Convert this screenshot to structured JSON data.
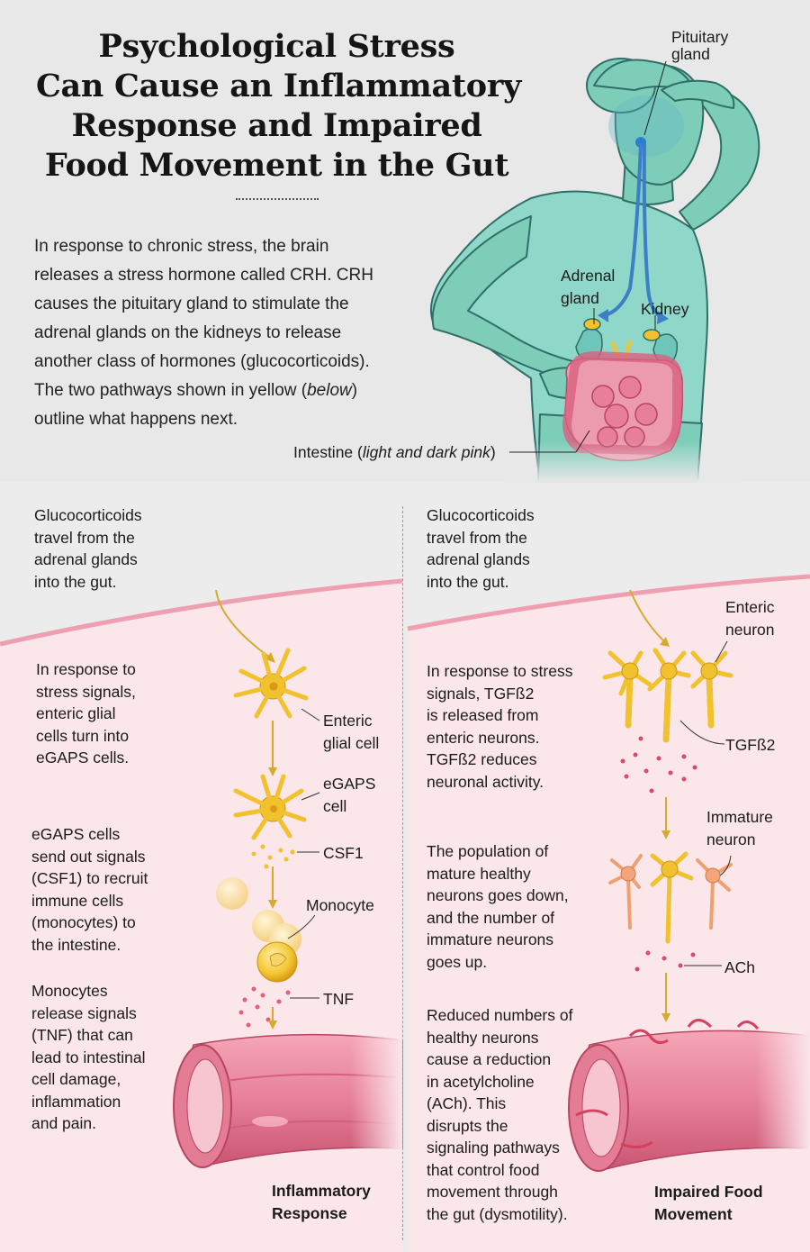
{
  "title": {
    "lines": [
      "Psychological Stress",
      "Can Cause an Inflammatory",
      "Response and Impaired",
      "Food Movement in the Gut"
    ]
  },
  "intro": {
    "lines": [
      "In response to chronic stress, the brain",
      "releases a stress hormone called CRH. CRH",
      "causes the pituitary gland to stimulate the",
      "adrenal glands on the kidneys to release",
      "another class of hormones (glucocorticoids).",
      "The two pathways shown in yellow (",
      "below",
      ")",
      "outline what happens next."
    ]
  },
  "body_labels": {
    "pituitary": [
      "Pituitary",
      "gland"
    ],
    "adrenal": [
      "Adrenal",
      "gland"
    ],
    "kidney": "Kidney",
    "intestine_prefix": "Intestine (",
    "intestine_italic": "light and dark pink",
    "intestine_suffix": ")"
  },
  "left_panel": {
    "intro": [
      "Glucocorticoids",
      "travel from the",
      "adrenal glands",
      "into the gut."
    ],
    "step1": [
      "In response to",
      "stress signals,",
      "enteric glial",
      "cells turn into",
      "eGAPS cells."
    ],
    "step2": [
      "eGAPS cells",
      "send out signals",
      "(CSF1) to recruit",
      "immune cells",
      "(monocytes) to",
      "the intestine."
    ],
    "step3": [
      "Monocytes",
      "release signals",
      "(TNF) that can",
      "lead to intestinal",
      "cell damage,",
      "inflammation",
      "and pain."
    ],
    "labels": {
      "enteric_glial": [
        "Enteric",
        "glial cell"
      ],
      "egaps": [
        "eGAPS",
        "cell"
      ],
      "csf1": "CSF1",
      "monocyte": "Monocyte",
      "tnf": "TNF"
    },
    "caption": [
      "Inflammatory",
      "Response"
    ]
  },
  "right_panel": {
    "intro": [
      "Glucocorticoids",
      "travel from the",
      "adrenal glands",
      "into the gut."
    ],
    "step1": [
      "In response to stress",
      "signals, TGFß2",
      "is released from",
      "enteric neurons.",
      "TGFß2 reduces",
      "neuronal activity."
    ],
    "step2": [
      "The population of",
      "mature healthy",
      "neurons goes down,",
      "and the number of",
      "immature neurons",
      "goes up."
    ],
    "step3": [
      "Reduced numbers of",
      "healthy neurons",
      "cause a reduction",
      "in acetylcholine",
      "(ACh). This",
      "disrupts the",
      "signaling pathways",
      "that control food",
      "movement through",
      "the gut (dysmotility)."
    ],
    "labels": {
      "enteric_neuron": [
        "Enteric",
        "neuron"
      ],
      "tgfb2": "TGFß2",
      "immature_neuron": [
        "Immature",
        "neuron"
      ],
      "ach": "ACh"
    },
    "caption": [
      "Impaired Food",
      "Movement"
    ]
  },
  "colors": {
    "skin": "#7ecdb9",
    "skin_dark": "#2f6f66",
    "shirt": "#8fd8c9",
    "gut_pink": "#e77f98",
    "cell_yellow": "#f2c12e",
    "bg_top": "#e8e8e9",
    "bg_bottom": "#fbe6ea"
  }
}
